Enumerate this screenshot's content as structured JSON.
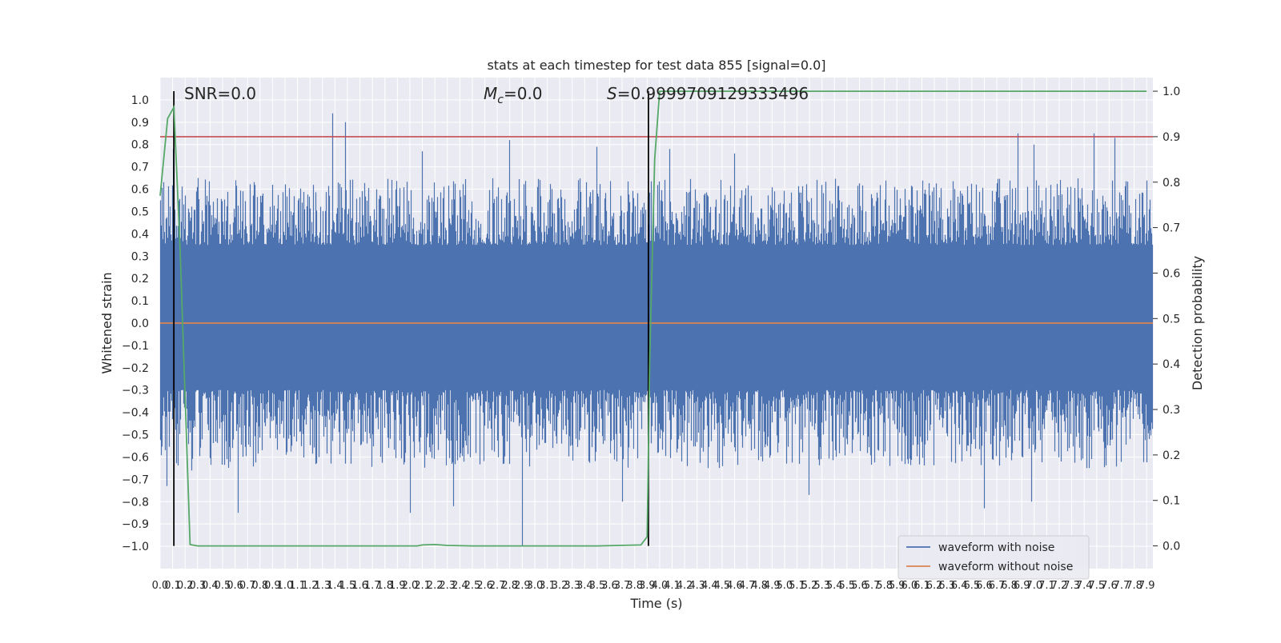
{
  "chart_data": {
    "type": "line",
    "title": "stats at each timestep for test data 855 [signal=0.0]",
    "xlabel": "Time (s)",
    "ylabel": "Whitened strain",
    "ylabel_right": "Detection probability",
    "xlim": [
      0.0,
      7.95
    ],
    "ylim": [
      -1.1,
      1.1
    ],
    "ylim_right": [
      -0.05,
      1.03
    ],
    "grid": true,
    "x_tick_step": 0.1,
    "x_tick_max": 7.9,
    "y_ticks": [
      -1.0,
      -0.9,
      -0.8,
      -0.7,
      -0.6,
      -0.5,
      -0.4,
      -0.3,
      -0.2,
      -0.1,
      0.0,
      0.1,
      0.2,
      0.3,
      0.4,
      0.5,
      0.6,
      0.7,
      0.8,
      0.9,
      1.0
    ],
    "y_ticks_right": [
      0.0,
      0.1,
      0.2,
      0.3,
      0.4,
      0.5,
      0.6,
      0.7,
      0.8,
      0.9,
      1.0
    ],
    "annotations": {
      "snr": "SNR=0.0",
      "mc_symbol": "M",
      "mc_sub": "c",
      "mc_value": "=0.0",
      "s_symbol": "S",
      "s_value": "=0.9999709129333496"
    },
    "vertical_lines": [
      0.11,
      3.91
    ],
    "threshold_right": 0.9,
    "noise_envelope": {
      "description_values": "approximate per-segment extremes of the noisy waveform",
      "upper_typical": [
        0.35,
        0.65
      ],
      "lower_typical": [
        -0.3,
        -0.65
      ]
    },
    "series": [
      {
        "name": "waveform with noise",
        "axis": "left",
        "color": "#4c72b0",
        "peaks_max": [
          [
            0.0,
            0.55
          ],
          [
            0.1,
            0.78
          ],
          [
            0.3,
            0.65
          ],
          [
            0.6,
            0.64
          ],
          [
            0.9,
            0.62
          ],
          [
            1.38,
            0.94
          ],
          [
            1.48,
            0.9
          ],
          [
            2.1,
            0.77
          ],
          [
            2.8,
            0.82
          ],
          [
            3.5,
            0.79
          ],
          [
            4.08,
            0.78
          ],
          [
            4.6,
            0.76
          ],
          [
            6.87,
            0.85
          ],
          [
            7.0,
            0.8
          ],
          [
            7.48,
            0.85
          ],
          [
            7.65,
            0.83
          ]
        ],
        "peaks_min": [
          [
            0.05,
            -0.73
          ],
          [
            0.25,
            -0.66
          ],
          [
            0.62,
            -0.85
          ],
          [
            2.0,
            -0.85
          ],
          [
            2.35,
            -0.82
          ],
          [
            2.9,
            -1.0
          ],
          [
            3.7,
            -0.8
          ],
          [
            5.2,
            -0.77
          ],
          [
            6.6,
            -0.83
          ],
          [
            6.98,
            -0.8
          ]
        ]
      },
      {
        "name": "waveform without noise",
        "axis": "left",
        "color": "#dd8452",
        "x": [
          0.0,
          7.95
        ],
        "y": [
          0.0,
          0.0
        ]
      },
      {
        "name": "detection probability",
        "axis": "right",
        "color": "#55a868",
        "x": [
          0.0,
          0.06,
          0.11,
          0.16,
          0.24,
          0.3,
          0.5,
          1.0,
          1.5,
          2.0,
          2.06,
          2.1,
          2.2,
          2.3,
          2.5,
          3.0,
          3.5,
          3.85,
          3.9,
          3.92,
          3.96,
          4.0,
          5.0,
          6.0,
          7.0,
          7.9
        ],
        "y": [
          0.77,
          0.94,
          0.965,
          0.65,
          0.003,
          0.0,
          0.0,
          0.0,
          0.0,
          0.0,
          0.0,
          0.002,
          0.003,
          0.001,
          0.0,
          0.0,
          0.0,
          0.002,
          0.02,
          0.4,
          0.85,
          1.0,
          1.0,
          1.0,
          1.0,
          1.0
        ]
      }
    ],
    "legend": {
      "placement": "lower-right",
      "entries": [
        {
          "label": "waveform with noise",
          "color": "#4c72b0"
        },
        {
          "label": "waveform without noise",
          "color": "#dd8452"
        }
      ]
    },
    "colors": {
      "background": "#eaeaf2",
      "grid": "#ffffff",
      "threshold": "#c44e52",
      "vline": "#000000"
    }
  }
}
